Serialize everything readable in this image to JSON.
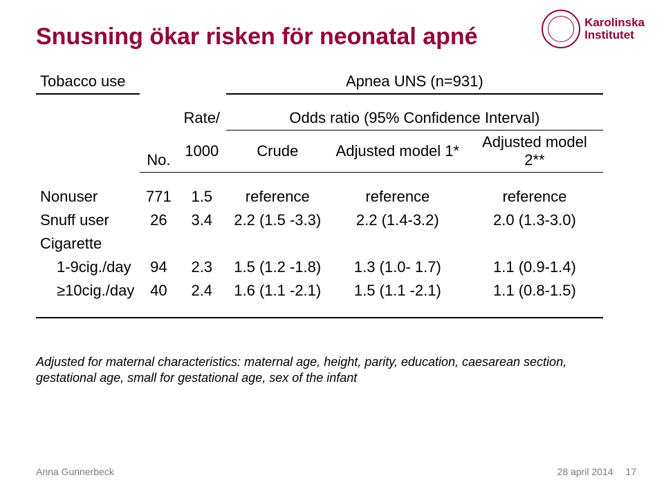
{
  "colors": {
    "accent": "#92003b",
    "text": "#000000",
    "footer": "#7a7a7a",
    "background": "#ffffff"
  },
  "title": "Snusning ökar risken för neonatal apné",
  "logo": {
    "line1": "Karolinska",
    "line2": "Institutet"
  },
  "table": {
    "col_tobacco": "Tobacco use",
    "col_apnea": "Apnea UNS (n=931)",
    "col_no": "No.",
    "col_rate_l1": "Rate/",
    "col_rate_l2": "1000",
    "col_odds": "Odds ratio (95% Confidence Interval)",
    "col_crude": "Crude",
    "col_adj1": "Adjusted model 1*",
    "col_adj2": "Adjusted model 2**",
    "rows": [
      {
        "label": "Nonuser",
        "indent": false,
        "no": "771",
        "rate": "1.5",
        "crude": "reference",
        "adj1": "reference",
        "adj2": "reference"
      },
      {
        "label": "Snuff user",
        "indent": false,
        "no": "26",
        "rate": "3.4",
        "crude": "2.2 (1.5 -3.3)",
        "adj1": "2.2 (1.4-3.2)",
        "adj2": "2.0 (1.3-3.0)"
      }
    ],
    "group_label": "Cigarette",
    "group_rows": [
      {
        "label": "1-9cig./day",
        "indent": true,
        "no": "94",
        "rate": "2.3",
        "crude": "1.5 (1.2 -1.8)",
        "adj1": "1.3 (1.0- 1.7)",
        "adj2": "1.1 (0.9-1.4)"
      },
      {
        "label": "≥10cig./day",
        "indent": true,
        "no": "40",
        "rate": "2.4",
        "crude": "1.6 (1.1 -2.1)",
        "adj1": "1.5 (1.1 -2.1)",
        "adj2": "1.1 (0.8-1.5)"
      }
    ]
  },
  "footnote": "Adjusted for maternal characteristics: maternal age, height, parity, education, caesarean section, gestational age, small for gestational age, sex of the infant",
  "footer": {
    "author": "Anna Gunnerbeck",
    "date": "28 april 2014",
    "page": "17"
  }
}
